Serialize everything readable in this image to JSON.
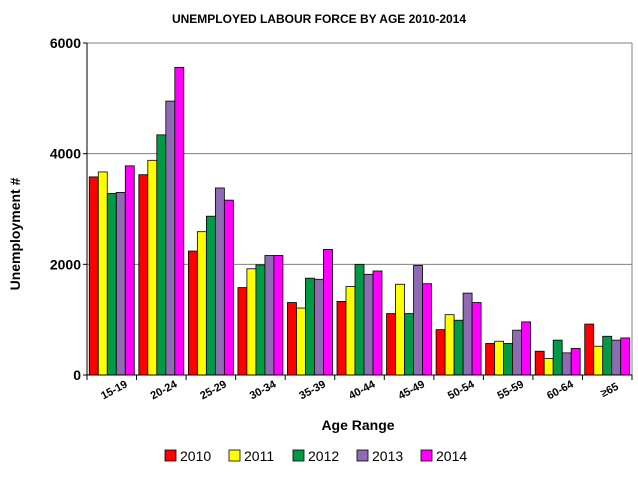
{
  "chart_data": {
    "type": "bar",
    "title": "UNEMPLOYED LABOUR FORCE BY AGE  2010-2014",
    "xlabel": "Age Range",
    "ylabel": "Unemployment #",
    "ylim": [
      0,
      6000
    ],
    "yticks": [
      0,
      2000,
      4000,
      6000
    ],
    "grid": true,
    "legend_position": "bottom",
    "categories": [
      "15-19",
      "20-24",
      "25-29",
      "30-34",
      "35-39",
      "40-44",
      "45-49",
      "50-54",
      "55-59",
      "60-64",
      "≥65"
    ],
    "series": [
      {
        "name": "2010",
        "color": "#ff0000",
        "values": [
          3580,
          3620,
          2240,
          1580,
          1310,
          1330,
          1110,
          820,
          570,
          430,
          920
        ]
      },
      {
        "name": "2011",
        "color": "#ffff00",
        "values": [
          3670,
          3880,
          2590,
          1920,
          1210,
          1600,
          1640,
          1090,
          610,
          300,
          520
        ]
      },
      {
        "name": "2012",
        "color": "#009a46",
        "values": [
          3280,
          4340,
          2870,
          1990,
          1750,
          2000,
          1110,
          990,
          570,
          630,
          700
        ]
      },
      {
        "name": "2013",
        "color": "#8f6bb3",
        "values": [
          3300,
          4950,
          3380,
          2160,
          1730,
          1820,
          1980,
          1480,
          810,
          400,
          630
        ]
      },
      {
        "name": "2014",
        "color": "#ff00ff",
        "values": [
          3780,
          5560,
          3160,
          2160,
          2270,
          1880,
          1650,
          1310,
          960,
          480,
          670
        ]
      }
    ]
  }
}
